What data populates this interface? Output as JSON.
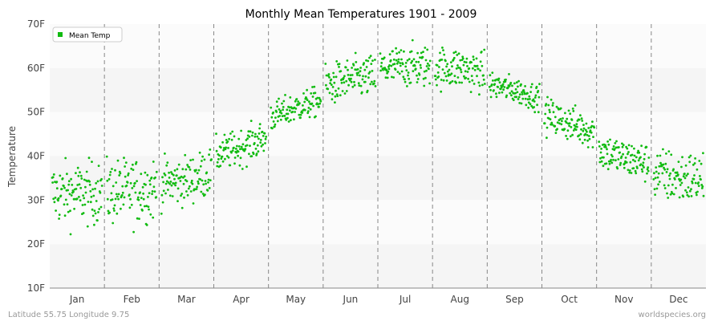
{
  "chart_data": {
    "type": "scatter",
    "title": "Monthly Mean Temperatures 1901 - 2009",
    "xlabel": "",
    "ylabel": "Temperature",
    "ylim": [
      10,
      70
    ],
    "y_ticks": [
      "10F",
      "20F",
      "30F",
      "40F",
      "50F",
      "60F",
      "70F"
    ],
    "categories": [
      "Jan",
      "Feb",
      "Mar",
      "Apr",
      "May",
      "Jun",
      "Jul",
      "Aug",
      "Sep",
      "Oct",
      "Nov",
      "Dec"
    ],
    "legend": {
      "position": "top-left",
      "label": "Mean Temp"
    },
    "grid": "alternating horizontal bands; dashed vertical month separators",
    "series": [
      {
        "name": "Mean Temp",
        "color": "#11bb11",
        "monthly_mean": [
          31.5,
          32.0,
          34.5,
          42.0,
          51.0,
          57.5,
          60.5,
          60.0,
          55.0,
          47.5,
          39.5,
          35.0
        ],
        "monthly_range": [
          [
            20,
            41
          ],
          [
            19,
            41
          ],
          [
            26,
            42
          ],
          [
            36,
            48
          ],
          [
            46,
            56
          ],
          [
            50,
            64
          ],
          [
            54,
            68
          ],
          [
            54,
            68
          ],
          [
            50,
            59
          ],
          [
            42,
            54
          ],
          [
            33,
            46
          ],
          [
            26,
            44
          ]
        ],
        "points_per_month": 109
      }
    ]
  },
  "footer": {
    "left": "Latitude 55.75 Longitude 9.75",
    "right": "worldspecies.org"
  }
}
